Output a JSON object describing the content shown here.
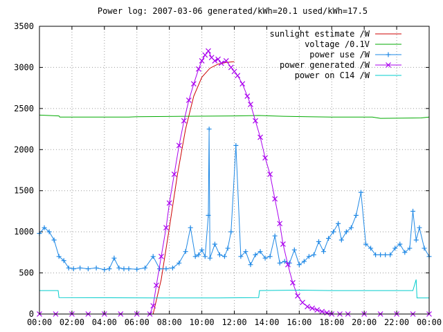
{
  "chart_data": {
    "type": "line",
    "title": "Power log: 2007-03-06 generated/kWh=20.1 used/kWh=17.5",
    "xlabel": "",
    "ylabel": "",
    "ylim": [
      0,
      3500
    ],
    "xlim": [
      0,
      24
    ],
    "grid": true,
    "legend_position": "top-right",
    "x_tick_labels": [
      "00:00",
      "02:00",
      "04:00",
      "06:00",
      "08:00",
      "10:00",
      "12:00",
      "14:00",
      "16:00",
      "18:00",
      "20:00",
      "22:00",
      "00:00"
    ],
    "y_tick_labels": [
      "0",
      "500",
      "1000",
      "1500",
      "2000",
      "2500",
      "3000",
      "3500"
    ],
    "y_ticks": [
      0,
      500,
      1000,
      1500,
      2000,
      2500,
      3000,
      3500
    ],
    "series": [
      {
        "name": "sunlight estimate /W",
        "color": "#cc0000",
        "marker": "none",
        "x": [
          7.0,
          7.5,
          8.0,
          8.5,
          9.0,
          9.5,
          10.0,
          10.5,
          11.0,
          11.5,
          12.0
        ],
        "y": [
          0,
          420,
          1050,
          1700,
          2250,
          2650,
          2880,
          2990,
          3040,
          3060,
          3070
        ]
      },
      {
        "name": "voltage /0.1V",
        "color": "#00aa00",
        "marker": "none",
        "x": [
          0,
          1.2,
          1.25,
          5.5,
          6.0,
          9.0,
          12.0,
          13.5,
          15.0,
          16.5,
          18.0,
          20.5,
          21.0,
          23.5,
          24.0
        ],
        "y": [
          2420,
          2410,
          2395,
          2395,
          2400,
          2405,
          2410,
          2415,
          2405,
          2400,
          2395,
          2395,
          2380,
          2385,
          2395
        ]
      },
      {
        "name": "power use /W",
        "color": "#1e88e5",
        "marker": "plus",
        "x": [
          0,
          0.3,
          0.6,
          0.9,
          1.2,
          1.5,
          1.8,
          2.1,
          2.5,
          3.0,
          3.5,
          4.0,
          4.3,
          4.6,
          4.9,
          5.2,
          5.5,
          6.0,
          6.5,
          7.0,
          7.4,
          7.8,
          8.2,
          8.6,
          9.0,
          9.3,
          9.6,
          9.8,
          10.0,
          10.2,
          10.4,
          10.45,
          10.5,
          10.8,
          11.1,
          11.4,
          11.6,
          11.8,
          12.1,
          12.4,
          12.7,
          13.0,
          13.3,
          13.6,
          13.9,
          14.2,
          14.5,
          14.8,
          15.1,
          15.4,
          15.7,
          16.0,
          16.3,
          16.6,
          16.9,
          17.2,
          17.5,
          17.8,
          18.1,
          18.4,
          18.6,
          18.9,
          19.2,
          19.5,
          19.8,
          20.1,
          20.4,
          20.7,
          21.0,
          21.3,
          21.6,
          21.9,
          22.2,
          22.5,
          22.8,
          23.0,
          23.2,
          23.4,
          23.7,
          24.0
        ],
        "y": [
          980,
          1050,
          1000,
          900,
          700,
          650,
          560,
          550,
          560,
          550,
          560,
          540,
          550,
          680,
          560,
          550,
          550,
          545,
          560,
          700,
          550,
          550,
          560,
          620,
          760,
          1050,
          700,
          720,
          780,
          700,
          1200,
          2250,
          680,
          850,
          720,
          700,
          800,
          1000,
          2050,
          700,
          760,
          600,
          720,
          760,
          680,
          700,
          950,
          620,
          640,
          620,
          780,
          600,
          640,
          700,
          720,
          880,
          760,
          920,
          1000,
          1100,
          900,
          1000,
          1050,
          1200,
          1480,
          850,
          800,
          720,
          720,
          720,
          720,
          800,
          850,
          750,
          800,
          1250,
          900,
          1050,
          800,
          700
        ]
      },
      {
        "name": "power generated /W",
        "color": "#aa00ee",
        "marker": "cross",
        "x": [
          0,
          1.0,
          2.0,
          3.0,
          4.0,
          5.0,
          6.0,
          6.8,
          7.0,
          7.2,
          7.5,
          7.8,
          8.0,
          8.3,
          8.6,
          8.9,
          9.2,
          9.5,
          9.8,
          10.0,
          10.2,
          10.4,
          10.6,
          10.8,
          11.0,
          11.2,
          11.5,
          11.8,
          12.0,
          12.2,
          12.5,
          12.8,
          13.0,
          13.3,
          13.6,
          13.9,
          14.2,
          14.5,
          14.8,
          15.0,
          15.3,
          15.6,
          15.9,
          16.2,
          16.5,
          16.8,
          17.1,
          17.4,
          17.7,
          18.0,
          18.5,
          19.0,
          20.0,
          21.0,
          22.0,
          23.0,
          24.0
        ],
        "y": [
          0,
          0,
          0,
          0,
          0,
          0,
          0,
          0,
          100,
          350,
          700,
          1050,
          1350,
          1700,
          2050,
          2350,
          2600,
          2800,
          2980,
          3080,
          3150,
          3200,
          3120,
          3080,
          3100,
          3050,
          3080,
          3000,
          2950,
          2900,
          2800,
          2650,
          2550,
          2350,
          2150,
          1900,
          1700,
          1400,
          1100,
          850,
          600,
          380,
          220,
          140,
          90,
          70,
          50,
          30,
          15,
          0,
          0,
          0,
          0,
          0,
          0,
          0,
          0
        ]
      },
      {
        "name": "power on C14 /W",
        "color": "#00cccc",
        "marker": "none",
        "x": [
          0,
          1.15,
          1.2,
          7.0,
          9.0,
          11.0,
          13.5,
          13.55,
          16.0,
          18.0,
          20.0,
          22.0,
          23.0,
          23.2,
          23.25,
          24.0
        ],
        "y": [
          285,
          285,
          200,
          195,
          195,
          195,
          200,
          285,
          290,
          285,
          285,
          285,
          285,
          420,
          195,
          195
        ]
      }
    ]
  }
}
